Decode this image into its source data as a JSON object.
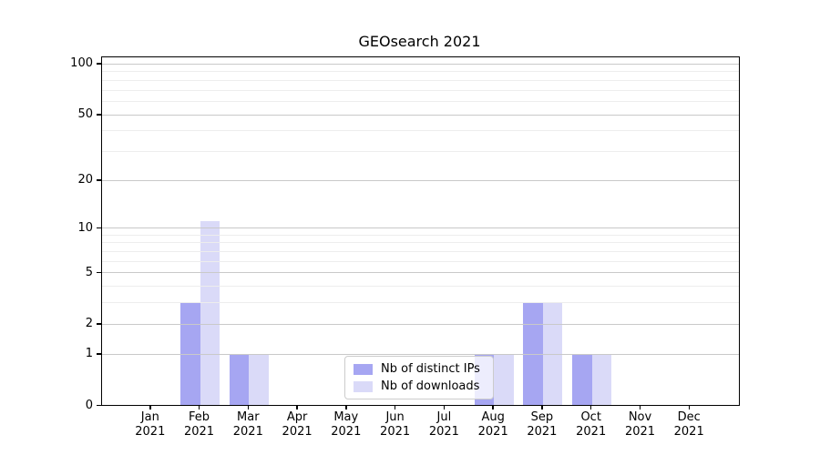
{
  "chart_data": {
    "type": "bar",
    "title": "GEOsearch 2021",
    "categories": [
      {
        "month": "Jan",
        "year": "2021"
      },
      {
        "month": "Feb",
        "year": "2021"
      },
      {
        "month": "Mar",
        "year": "2021"
      },
      {
        "month": "Apr",
        "year": "2021"
      },
      {
        "month": "May",
        "year": "2021"
      },
      {
        "month": "Jun",
        "year": "2021"
      },
      {
        "month": "Jul",
        "year": "2021"
      },
      {
        "month": "Aug",
        "year": "2021"
      },
      {
        "month": "Sep",
        "year": "2021"
      },
      {
        "month": "Oct",
        "year": "2021"
      },
      {
        "month": "Nov",
        "year": "2021"
      },
      {
        "month": "Dec",
        "year": "2021"
      }
    ],
    "series": [
      {
        "name": "Nb of distinct IPs",
        "color": "#a6a6f2",
        "values": [
          0,
          3,
          1,
          0,
          0,
          0,
          0,
          1,
          3,
          1,
          0,
          0
        ]
      },
      {
        "name": "Nb of downloads",
        "color": "#dadaf8",
        "values": [
          0,
          11,
          1,
          0,
          0,
          0,
          0,
          1,
          3,
          1,
          0,
          0
        ]
      }
    ],
    "yticks": [
      0,
      1,
      2,
      5,
      10,
      20,
      50,
      100
    ],
    "grid": {
      "major": [
        1,
        2,
        5,
        10,
        20,
        50,
        100
      ],
      "minor": [
        3,
        4,
        6,
        7,
        8,
        9,
        30,
        40,
        60,
        70,
        80,
        90
      ]
    },
    "scale": "log10(1+x)",
    "ylim": [
      0,
      109
    ],
    "xlabel": "",
    "ylabel": "",
    "legend_position": "inside-bottom-center",
    "grid_on": true
  }
}
